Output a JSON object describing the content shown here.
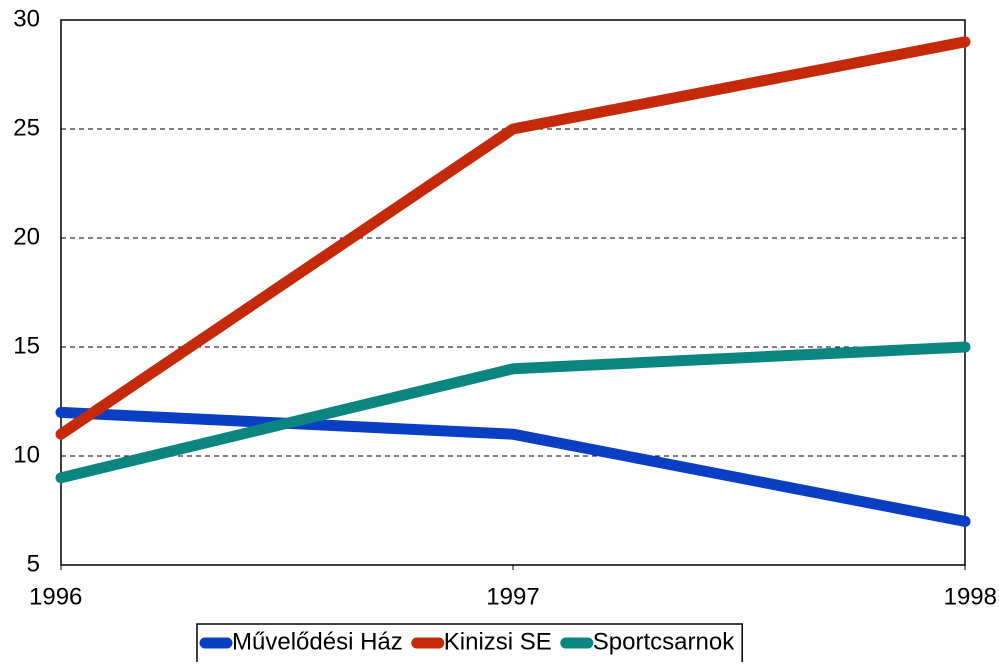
{
  "chart_data": {
    "type": "line",
    "x": [
      1996,
      1997,
      1998
    ],
    "xlim": [
      1996,
      1998
    ],
    "xticks": [
      1996,
      1997,
      1998
    ],
    "ylim": [
      5,
      30
    ],
    "yticks": [
      5,
      10,
      15,
      20,
      25,
      30
    ],
    "grid": true,
    "legend": "bottom",
    "series": [
      {
        "name": "Művelődési Ház",
        "color": "#0a3fc4",
        "values": [
          12,
          11,
          7
        ]
      },
      {
        "name": "Kinizsi SE",
        "color": "#c42a0a",
        "values": [
          11,
          25,
          29
        ]
      },
      {
        "name": "Sportcsarnok",
        "color": "#0a8580",
        "values": [
          9,
          14,
          15
        ]
      }
    ]
  }
}
